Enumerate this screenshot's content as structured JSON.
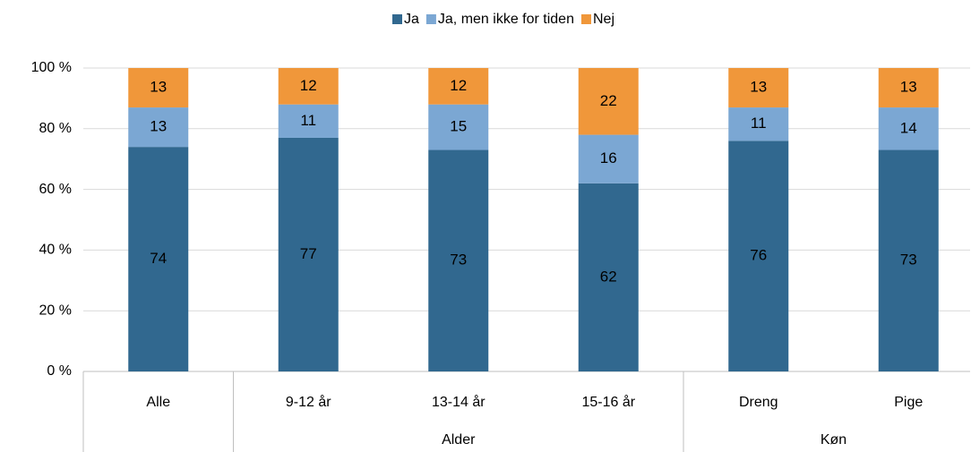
{
  "chart_data": {
    "type": "stacked_bar",
    "categories": [
      "Alle",
      "9-12 år",
      "13-14 år",
      "15-16 år",
      "Dreng",
      "Pige"
    ],
    "category_groups": [
      {
        "name": null,
        "span": 1
      },
      {
        "name": "Alder",
        "span": 3
      },
      {
        "name": "Køn",
        "span": 2
      }
    ],
    "series": [
      {
        "name": "Ja",
        "color": "#31688f",
        "values": [
          74,
          77,
          73,
          62,
          76,
          73
        ]
      },
      {
        "name": "Ja, men ikke for tiden",
        "color": "#7ba7d3",
        "values": [
          13,
          11,
          15,
          16,
          11,
          14
        ]
      },
      {
        "name": "Nej",
        "color": "#f0973a",
        "values": [
          13,
          12,
          12,
          22,
          13,
          13
        ]
      }
    ],
    "ylim": [
      0,
      100
    ],
    "yticks": [
      {
        "value": 0,
        "label": "0 %"
      },
      {
        "value": 20,
        "label": "20 %"
      },
      {
        "value": 40,
        "label": "40 %"
      },
      {
        "value": 60,
        "label": "60 %"
      },
      {
        "value": 80,
        "label": "80 %"
      },
      {
        "value": 100,
        "label": "100 %"
      }
    ],
    "grid": true,
    "legend": "top"
  }
}
